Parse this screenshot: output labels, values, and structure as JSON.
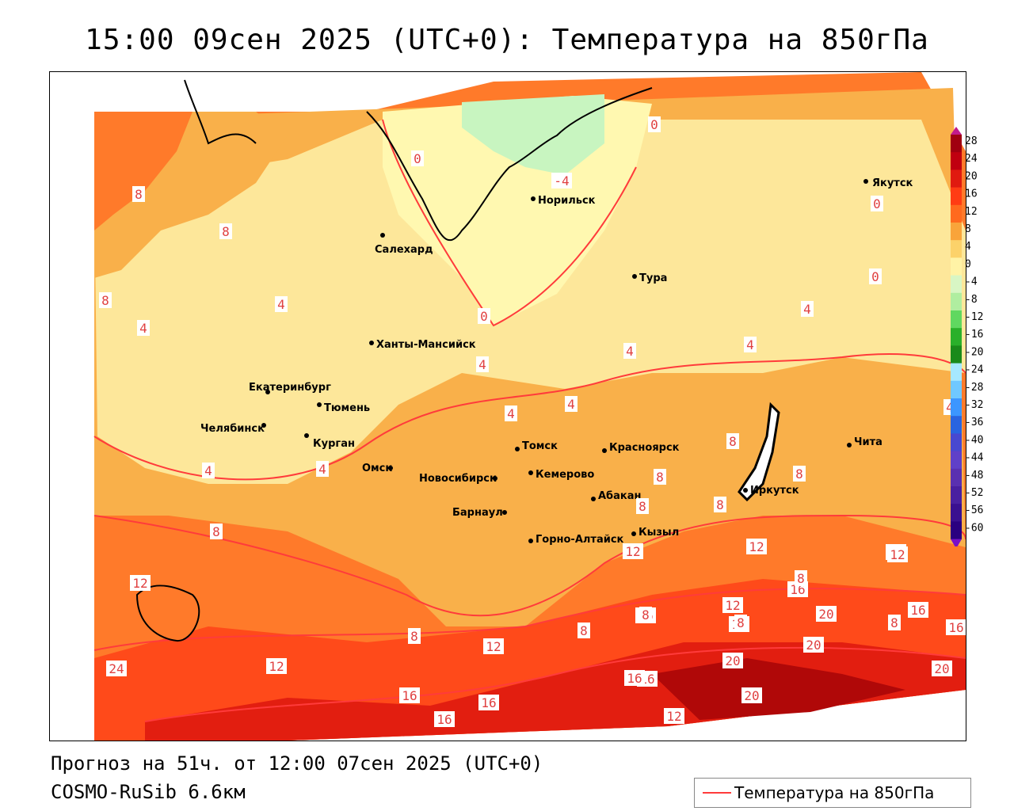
{
  "title": "15:00 09сен 2025 (UTC+0): Температура на 850гПа",
  "forecast_line": "Прогноз на 51ч. от 12:00 07сен 2025 (UTC+0)",
  "model_line": "COSMO-RuSib 6.6км",
  "legend_label": "Температура на 850гПа",
  "colors": {
    "isoline": "#ff3b3b",
    "t_minus4": "#c8f5c0",
    "t_0": "#fff8b0",
    "t_4": "#fde79a",
    "t_8": "#f9b04a",
    "t_12": "#ff7a2a",
    "t_16": "#ff4a1a",
    "t_20": "#e21e10",
    "t_24": "#b00808"
  },
  "scale": {
    "values": [
      "28",
      "24",
      "20",
      "16",
      "12",
      "8",
      "4",
      "0",
      "-4",
      "-8",
      "-12",
      "-16",
      "-20",
      "-24",
      "-28",
      "-32",
      "-36",
      "-40",
      "-44",
      "-48",
      "-52",
      "-56",
      "-60"
    ],
    "colors": [
      "#a00010",
      "#c00010",
      "#e01a10",
      "#ff3c14",
      "#ff6a1e",
      "#f9a43a",
      "#fcd26a",
      "#fff3a6",
      "#d8f6c4",
      "#b0eea0",
      "#60d860",
      "#2ab02a",
      "#1a8a1a",
      "#a6e8ff",
      "#70c8ff",
      "#3c96ff",
      "#2a64e0",
      "#4848d0",
      "#6040c8",
      "#5a30b0",
      "#4a20a0",
      "#3a1090",
      "#2a0080"
    ]
  },
  "cities": [
    {
      "name": "Якутск"
    },
    {
      "name": "Норильск"
    },
    {
      "name": "Салехард"
    },
    {
      "name": "Тура"
    },
    {
      "name": "Ханты-Мансийск"
    },
    {
      "name": "Екатеринбург"
    },
    {
      "name": "Тюмень"
    },
    {
      "name": "Челябинск"
    },
    {
      "name": "Курган"
    },
    {
      "name": "Омск"
    },
    {
      "name": "Новосибирск"
    },
    {
      "name": "Томск"
    },
    {
      "name": "Кемерово"
    },
    {
      "name": "Красноярск"
    },
    {
      "name": "Барнаул"
    },
    {
      "name": "Абакан"
    },
    {
      "name": "Иркутск"
    },
    {
      "name": "Чита"
    },
    {
      "name": "Кызыл"
    },
    {
      "name": "Горно-Алтайск"
    }
  ],
  "isotherm_labels": [
    "0",
    "0",
    "-4",
    "0",
    "0",
    "8",
    "8",
    "8",
    "4",
    "4",
    "0",
    "4",
    "4",
    "4",
    "4",
    "4",
    "4",
    "4",
    "4",
    "4",
    "8",
    "8",
    "8",
    "8",
    "8",
    "8",
    "8",
    "8",
    "12",
    "12",
    "12",
    "12",
    "12",
    "12",
    "16",
    "12",
    "16",
    "16",
    "16",
    "16",
    "16",
    "16",
    "20",
    "20",
    "20",
    "20",
    "20",
    "24",
    "16",
    "16",
    "16",
    "12",
    "12",
    "8",
    "8",
    "8",
    "8"
  ]
}
